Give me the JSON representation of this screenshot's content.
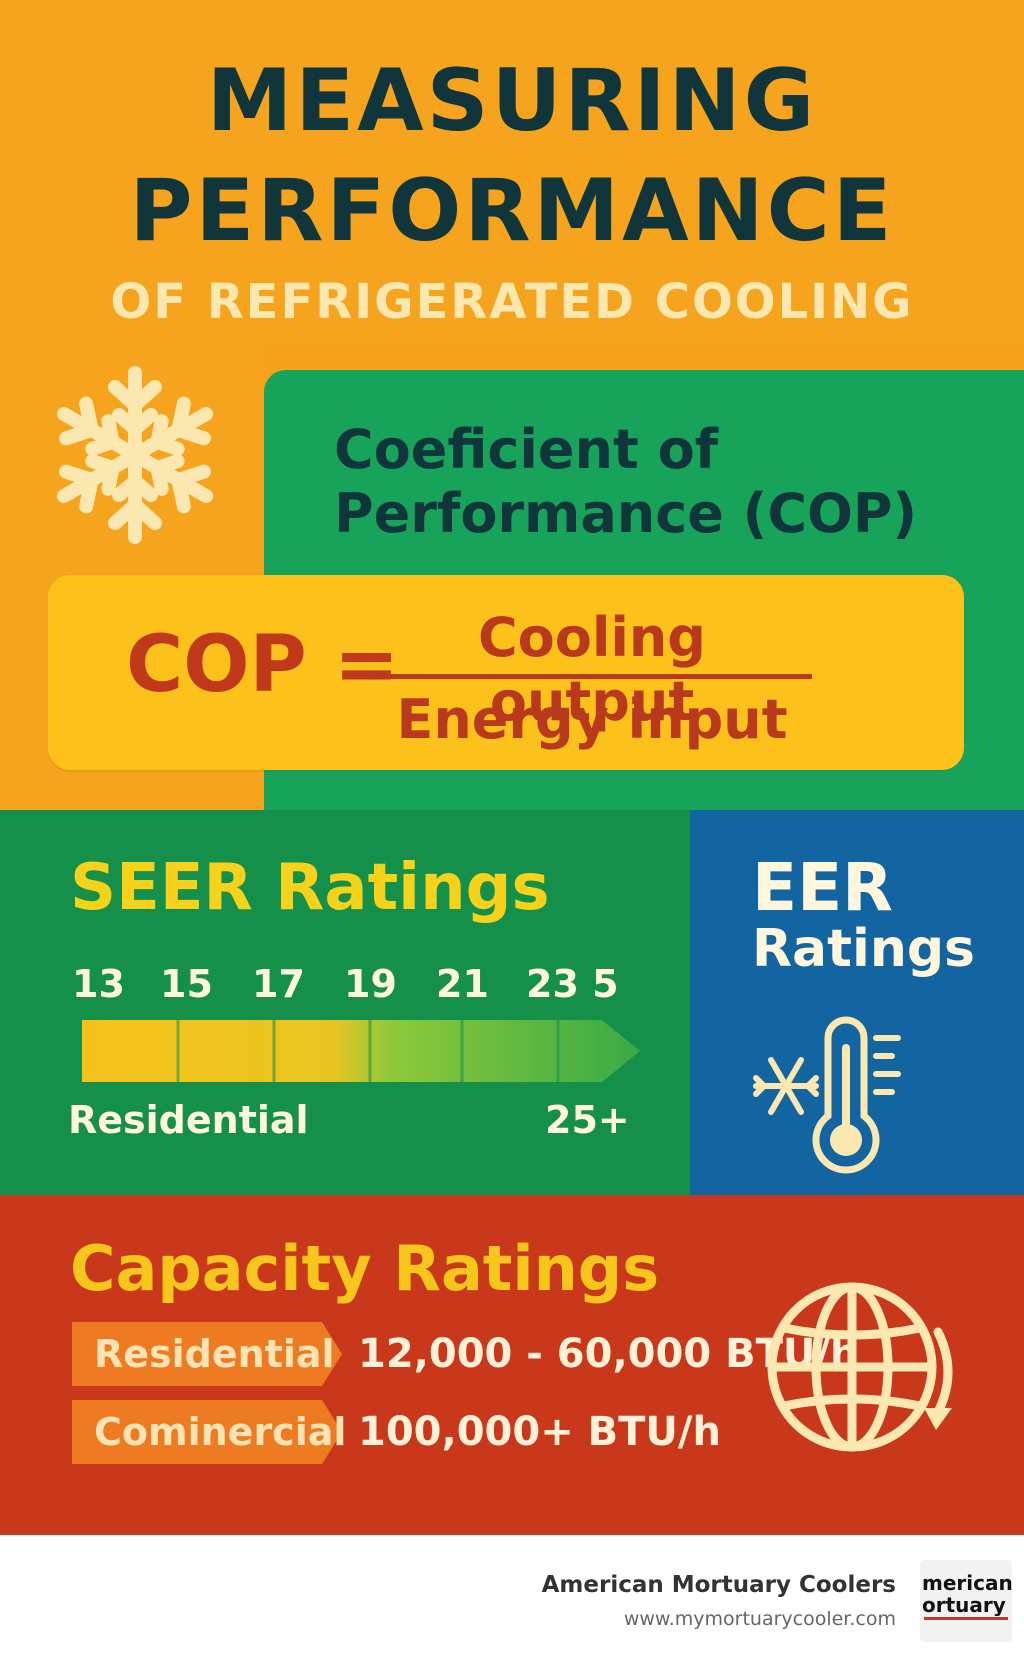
{
  "header": {
    "title_line1": "MEASURING",
    "title_line2": "PERFORMANCE",
    "subtitle": "OF REFRIGERATED  COOLING"
  },
  "cop": {
    "heading_line1": "Coeficient of",
    "heading_line2": "Performance  (COP)",
    "formula_lhs": "COP =",
    "numerator": "Cooling output",
    "denominator": "Energy input",
    "icon": "snowflake-icon"
  },
  "seer": {
    "title": "SEER Ratings",
    "scale_labels": [
      "13",
      "15",
      "17",
      "19",
      "21",
      "23 5"
    ],
    "left_label": "Residential",
    "right_label": "25+",
    "bar_colors": [
      "#f6c41a",
      "#f4c01a",
      "#e6c21f",
      "#8cc83a",
      "#4cb84a",
      "#3aac46"
    ]
  },
  "eer": {
    "title_line1": "EER",
    "title_line2": "Ratings",
    "icon": "snowflake-thermometer-icon"
  },
  "capacity": {
    "title": "Capacity Ratings",
    "rows": [
      {
        "label": "Residential",
        "value": "12,000 - 60,000 BTU/h"
      },
      {
        "label": "Cominercial",
        "value": "100,000+ BTU/h"
      }
    ],
    "icon": "globe-icon"
  },
  "footer": {
    "brand_name": "American Mortuary Coolers",
    "brand_url": "www.mymortuarycooler.com",
    "logo_line1": "merican",
    "logo_line2": "ortuary"
  },
  "colors": {
    "orange": "#f6a31d",
    "green": "#17a45a",
    "dark_green": "#14904a",
    "blue": "#1265a0",
    "red": "#c9381a",
    "yellow": "#fcc21b",
    "navy_text": "#10363c"
  }
}
